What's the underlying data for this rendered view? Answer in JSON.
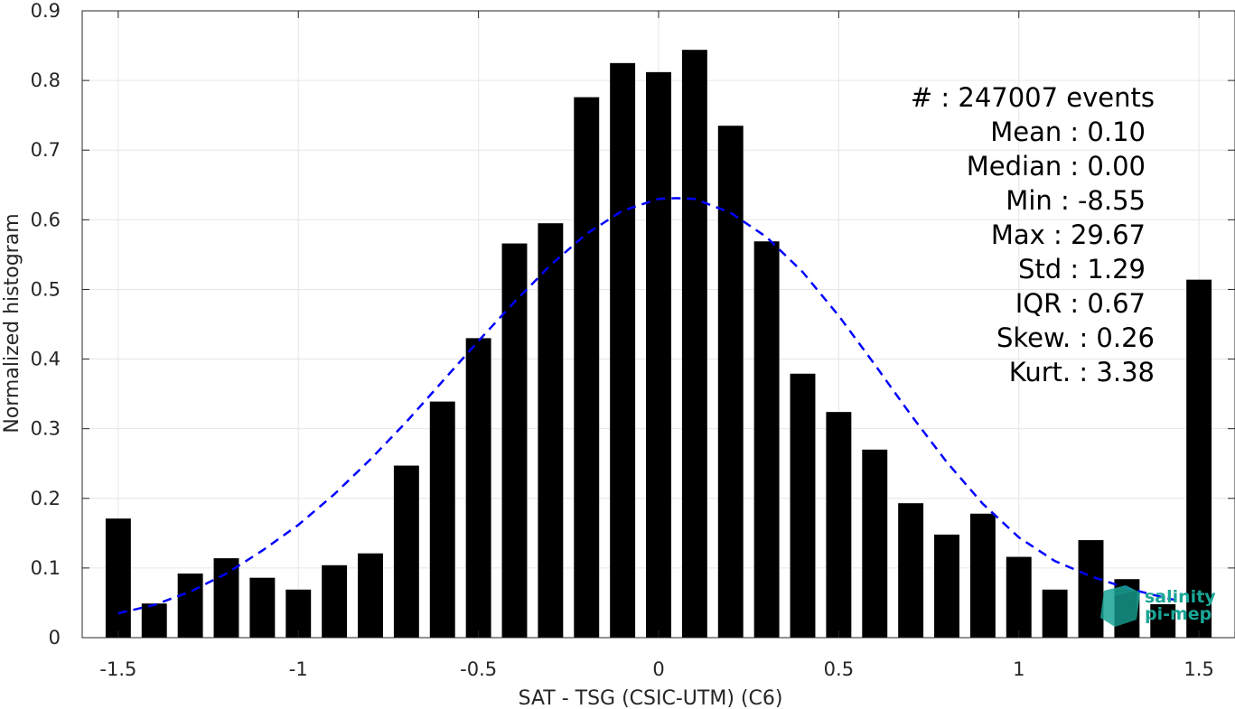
{
  "chart_data": {
    "type": "bar",
    "xlabel": "SAT - TSG (CSIC-UTM) (C6)",
    "ylabel": "Normalized histogram",
    "xlim": [
      -1.6,
      1.6
    ],
    "ylim": [
      0,
      0.9
    ],
    "xticks": [
      "-1.5",
      "-1",
      "-0.5",
      "0",
      "0.5",
      "1",
      "1.5"
    ],
    "xtick_values": [
      -1.5,
      -1,
      -0.5,
      0,
      0.5,
      1,
      1.5
    ],
    "yticks": [
      "0",
      "0.1",
      "0.2",
      "0.3",
      "0.4",
      "0.5",
      "0.6",
      "0.7",
      "0.8",
      "0.9"
    ],
    "ytick_values": [
      0,
      0.1,
      0.2,
      0.3,
      0.4,
      0.5,
      0.6,
      0.7,
      0.8,
      0.9
    ],
    "grid": true,
    "bar_width": 0.07,
    "bar_color": "#000000",
    "series": [
      {
        "x": [
          -1.5,
          -1.4,
          -1.3,
          -1.2,
          -1.1,
          -1.0,
          -0.9,
          -0.8,
          -0.7,
          -0.6,
          -0.5,
          -0.4,
          -0.3,
          -0.2,
          -0.1,
          0.0,
          0.1,
          0.2,
          0.3,
          0.4,
          0.5,
          0.6,
          0.7,
          0.8,
          0.9,
          1.0,
          1.1,
          1.2,
          1.3,
          1.4,
          1.5
        ],
        "values": [
          0.171,
          0.049,
          0.092,
          0.114,
          0.086,
          0.069,
          0.104,
          0.121,
          0.247,
          0.339,
          0.43,
          0.566,
          0.595,
          0.776,
          0.825,
          0.812,
          0.844,
          0.735,
          0.569,
          0.379,
          0.324,
          0.27,
          0.193,
          0.148,
          0.178,
          0.116,
          0.069,
          0.14,
          0.084,
          0.048,
          0.514
        ]
      }
    ],
    "fit_curve": {
      "style": "dashed",
      "color": "#0000ff",
      "x": [
        -1.5,
        -1.4,
        -1.3,
        -1.2,
        -1.1,
        -1.0,
        -0.9,
        -0.8,
        -0.7,
        -0.6,
        -0.5,
        -0.4,
        -0.3,
        -0.2,
        -0.1,
        0.0,
        0.05,
        0.1,
        0.2,
        0.3,
        0.4,
        0.5,
        0.6,
        0.7,
        0.8,
        0.9,
        1.0,
        1.1,
        1.2,
        1.3,
        1.4,
        1.45
      ],
      "y": [
        0.035,
        0.047,
        0.066,
        0.092,
        0.125,
        0.162,
        0.206,
        0.256,
        0.31,
        0.368,
        0.426,
        0.482,
        0.535,
        0.58,
        0.613,
        0.63,
        0.631,
        0.63,
        0.61,
        0.575,
        0.525,
        0.462,
        0.392,
        0.32,
        0.252,
        0.192,
        0.144,
        0.11,
        0.088,
        0.071,
        0.058,
        0.052
      ]
    }
  },
  "stats": [
    {
      "label": "#  ",
      "value": "247007 events"
    },
    {
      "label": "Mean",
      "value": "0.10"
    },
    {
      "label": "Median",
      "value": "0.00"
    },
    {
      "label": "Min",
      "value": "-8.55"
    },
    {
      "label": "Max",
      "value": "29.67"
    },
    {
      "label": "Std",
      "value": "1.29"
    },
    {
      "label": "IQR",
      "value": "0.67"
    },
    {
      "label": "Skew.",
      "value": "0.26"
    },
    {
      "label": "Kurt.",
      "value": "3.38"
    }
  ],
  "stats_lines": [
    "#  : 247007 events",
    "Mean : 0.10",
    "Median : 0.00",
    "Min : -8.55",
    "Max : 29.67",
    "Std : 1.29",
    "IQR : 0.67",
    "Skew. : 0.26",
    "Kurt. : 3.38"
  ],
  "logo": {
    "line1": "salinity",
    "line2": "pi-mep",
    "color": "#1aa596"
  }
}
